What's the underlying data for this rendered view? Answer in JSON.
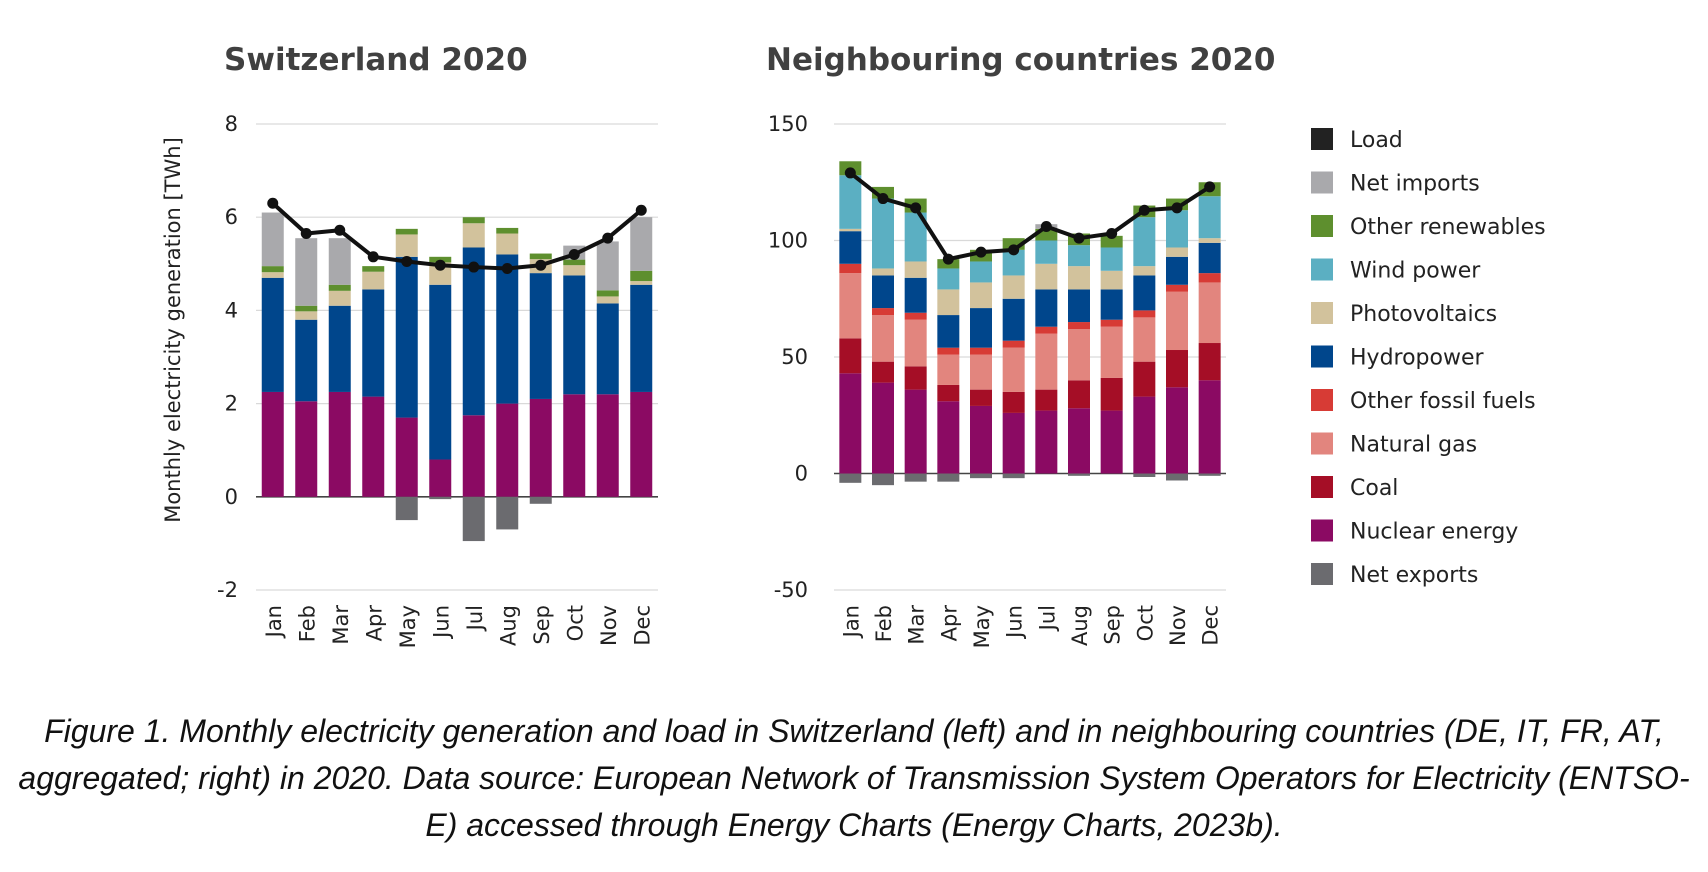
{
  "chart_data": [
    {
      "type": "bar",
      "stacked": true,
      "title": "Switzerland 2020",
      "ylabel": "Monthly electricity generation [TWh]",
      "ylim": [
        -2,
        8
      ],
      "yticks": [
        -2,
        0,
        2,
        4,
        6,
        8
      ],
      "grid": true,
      "categories": [
        "Jan",
        "Feb",
        "Mar",
        "Apr",
        "May",
        "Jun",
        "Jul",
        "Aug",
        "Sep",
        "Oct",
        "Nov",
        "Dec"
      ],
      "series": [
        {
          "name": "Nuclear energy",
          "color": "#8B0A63",
          "values": [
            2.25,
            2.05,
            2.25,
            2.15,
            1.7,
            0.8,
            1.75,
            2.0,
            2.1,
            2.2,
            2.2,
            2.25
          ]
        },
        {
          "name": "Coal",
          "color": "#A50E26",
          "values": [
            0,
            0,
            0,
            0,
            0,
            0,
            0,
            0,
            0,
            0,
            0,
            0
          ]
        },
        {
          "name": "Natural gas",
          "color": "#E2857E",
          "values": [
            0,
            0,
            0,
            0,
            0,
            0,
            0,
            0,
            0,
            0,
            0,
            0
          ]
        },
        {
          "name": "Other fossil fuels",
          "color": "#D73B35",
          "values": [
            0,
            0,
            0,
            0,
            0,
            0,
            0,
            0,
            0,
            0,
            0,
            0
          ]
        },
        {
          "name": "Hydropower",
          "color": "#00468C",
          "values": [
            2.45,
            1.75,
            1.85,
            2.3,
            3.45,
            3.75,
            3.6,
            3.2,
            2.7,
            2.55,
            1.95,
            2.3
          ]
        },
        {
          "name": "Photovoltaics",
          "color": "#D2C29C",
          "values": [
            0.12,
            0.18,
            0.32,
            0.38,
            0.48,
            0.48,
            0.52,
            0.45,
            0.3,
            0.22,
            0.15,
            0.08
          ]
        },
        {
          "name": "Wind power",
          "color": "#5BAFC2",
          "values": [
            0,
            0,
            0,
            0,
            0,
            0,
            0,
            0,
            0,
            0,
            0,
            0
          ]
        },
        {
          "name": "Other renewables",
          "color": "#5E8F2E",
          "values": [
            0.13,
            0.12,
            0.13,
            0.12,
            0.12,
            0.12,
            0.13,
            0.12,
            0.12,
            0.12,
            0.13,
            0.22
          ]
        },
        {
          "name": "Net imports",
          "color": "#A9A9AC",
          "values": [
            1.15,
            1.45,
            1.0,
            0,
            0,
            0,
            0,
            0,
            0,
            0.3,
            1.05,
            1.15
          ]
        },
        {
          "name": "Net exports",
          "color": "#6B6B6F",
          "values": [
            0,
            0,
            0,
            0,
            -0.5,
            -0.05,
            -0.95,
            -0.7,
            -0.15,
            0,
            0,
            0
          ]
        }
      ],
      "line": {
        "name": "Load",
        "color": "#111111",
        "values": [
          6.3,
          5.65,
          5.72,
          5.15,
          5.05,
          4.97,
          4.93,
          4.9,
          4.97,
          5.2,
          5.55,
          6.15
        ]
      }
    },
    {
      "type": "bar",
      "stacked": true,
      "title": "Neighbouring countries 2020",
      "ylabel": "",
      "ylim": [
        -50,
        150
      ],
      "yticks": [
        -50,
        0,
        50,
        100,
        150
      ],
      "grid": true,
      "categories": [
        "Jan",
        "Feb",
        "Mar",
        "Apr",
        "May",
        "Jun",
        "Jul",
        "Aug",
        "Sep",
        "Oct",
        "Nov",
        "Dec"
      ],
      "series": [
        {
          "name": "Nuclear energy",
          "color": "#8B0A63",
          "values": [
            43,
            39,
            36,
            31,
            29,
            26,
            27,
            28,
            27,
            33,
            37,
            40
          ]
        },
        {
          "name": "Coal",
          "color": "#A50E26",
          "values": [
            15,
            9,
            10,
            7,
            7,
            9,
            9,
            12,
            14,
            15,
            16,
            16
          ]
        },
        {
          "name": "Natural gas",
          "color": "#E2857E",
          "values": [
            28,
            20,
            20,
            13,
            15,
            19,
            24,
            22,
            22,
            19,
            25,
            26
          ]
        },
        {
          "name": "Other fossil fuels",
          "color": "#D73B35",
          "values": [
            4,
            3,
            3,
            3,
            3,
            3,
            3,
            3,
            3,
            3,
            3,
            4
          ]
        },
        {
          "name": "Hydropower",
          "color": "#00468C",
          "values": [
            14,
            14,
            15,
            14,
            17,
            18,
            16,
            14,
            13,
            15,
            12,
            13
          ]
        },
        {
          "name": "Photovoltaics",
          "color": "#D2C29C",
          "values": [
            1,
            3,
            7,
            11,
            11,
            10,
            11,
            10,
            8,
            4,
            4,
            2
          ]
        },
        {
          "name": "Wind power",
          "color": "#5BAFC2",
          "values": [
            23,
            30,
            21,
            9,
            9,
            11,
            10,
            9,
            10,
            21,
            16,
            18
          ]
        },
        {
          "name": "Other renewables",
          "color": "#5E8F2E",
          "values": [
            6,
            5,
            6,
            4,
            5,
            5,
            5,
            5,
            5,
            5,
            5,
            6
          ]
        },
        {
          "name": "Net imports",
          "color": "#A9A9AC",
          "values": [
            0,
            0,
            0,
            0,
            0,
            0,
            2,
            0,
            0,
            0,
            0,
            0
          ]
        },
        {
          "name": "Net exports",
          "color": "#6B6B6F",
          "values": [
            -4,
            -5,
            -3.5,
            -3.5,
            -2,
            -2,
            0,
            -1,
            0,
            -1.5,
            -3,
            -1
          ]
        }
      ],
      "line": {
        "name": "Load",
        "color": "#111111",
        "values": [
          129,
          118,
          114,
          92,
          95,
          96,
          106,
          101,
          103,
          113,
          114,
          123
        ]
      }
    }
  ],
  "legend": {
    "position": "right",
    "items": [
      {
        "label": "Load",
        "color": "#222222"
      },
      {
        "label": "Net imports",
        "color": "#A9A9AC"
      },
      {
        "label": "Other renewables",
        "color": "#5E8F2E"
      },
      {
        "label": "Wind power",
        "color": "#5BAFC2"
      },
      {
        "label": "Photovoltaics",
        "color": "#D2C29C"
      },
      {
        "label": "Hydropower",
        "color": "#00468C"
      },
      {
        "label": "Other fossil fuels",
        "color": "#D73B35"
      },
      {
        "label": "Natural gas",
        "color": "#E2857E"
      },
      {
        "label": "Coal",
        "color": "#A50E26"
      },
      {
        "label": "Nuclear energy",
        "color": "#8B0A63"
      },
      {
        "label": "Net exports",
        "color": "#6B6B6F"
      }
    ]
  },
  "caption": "Figure 1. Monthly electricity generation and load in Switzerland (left) and in neighbouring countries (DE, IT, FR, AT, aggregated; right) in 2020. Data source: European Network of Transmission System Operators for Electricity (ENTSO-E) accessed through Energy Charts (Energy Charts, 2023b)."
}
